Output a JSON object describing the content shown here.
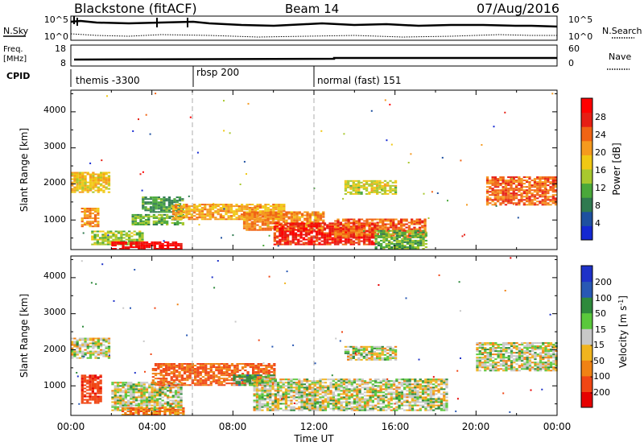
{
  "header": {
    "station": "Blackstone (fitACF)",
    "beam": "Beam 14",
    "date": "07/Aug/2016"
  },
  "noise_panel": {
    "left_label": "N.Sky",
    "right_label": "N.Search",
    "left_ticks": [
      "10^5",
      "10^0"
    ],
    "right_ticks": [
      "10^5",
      "10^0"
    ]
  },
  "freq_panel": {
    "left_label_line1": "Freq.",
    "left_label_line2": "[MHz]",
    "right_label": "Nave",
    "left_ticks": [
      "18",
      "8"
    ],
    "right_ticks": [
      "60",
      "0"
    ]
  },
  "cpid_panel": {
    "label": "CPID",
    "segments": [
      {
        "name": "themis -3300",
        "start_hour": 0,
        "end_hour": 6
      },
      {
        "name": "rbsp 200",
        "start_hour": 6,
        "end_hour": 12
      },
      {
        "name": "normal (fast) 151",
        "start_hour": 12,
        "end_hour": 24
      }
    ]
  },
  "x_axis": {
    "label": "Time UT",
    "ticks": [
      "00:00",
      "04:00",
      "08:00",
      "12:00",
      "16:00",
      "20:00",
      "00:00"
    ]
  },
  "power_panel": {
    "ylabel": "Slant Range [km]",
    "yticks": [
      "4000",
      "3000",
      "2000",
      "1000"
    ],
    "colorbar_label": "Power [dB]",
    "colorbar_ticks": [
      "28",
      "24",
      "20",
      "16",
      "12",
      "8",
      "4"
    ],
    "colors": [
      "#1428d2",
      "#1e50a0",
      "#2f7a50",
      "#4aa83a",
      "#a8c82e",
      "#f0c814",
      "#f59a1e",
      "#f06414",
      "#e61e14",
      "#ff0000"
    ]
  },
  "velocity_panel": {
    "ylabel": "Slant Range [km]",
    "yticks": [
      "4000",
      "3000",
      "2000",
      "1000"
    ],
    "colorbar_label": "Velocity [m s",
    "colorbar_unit_sup": "-1",
    "colorbar_label_end": "]",
    "colorbar_ticks": [
      "200",
      "100",
      "50",
      "15",
      "-15",
      "-50",
      "-100",
      "-200"
    ],
    "colors": [
      "#1e32c8",
      "#2858b4",
      "#2e8a3c",
      "#5ac83c",
      "#c8c8c8",
      "#f0b41e",
      "#f08214",
      "#f04614",
      "#e60000"
    ]
  },
  "chart_data": [
    {
      "type": "heatmap",
      "title": "Power",
      "xlabel": "Time UT",
      "ylabel": "Slant Range [km]",
      "xlim": [
        0,
        24
      ],
      "ylim": [
        180,
        4600
      ],
      "zlabel": "Power [dB]",
      "zlim": [
        0,
        32
      ],
      "grid": false,
      "patches": [
        {
          "t0": 0.0,
          "t1": 1.9,
          "r0": 1750,
          "r1": 2300,
          "value": 18
        },
        {
          "t0": 0.5,
          "t1": 1.4,
          "r0": 800,
          "r1": 1300,
          "value": 22
        },
        {
          "t0": 1.0,
          "t1": 3.5,
          "r0": 300,
          "r1": 700,
          "value": 14
        },
        {
          "t0": 2.0,
          "t1": 5.5,
          "r0": 180,
          "r1": 400,
          "value": 30
        },
        {
          "t0": 3.0,
          "t1": 5.5,
          "r0": 850,
          "r1": 1150,
          "value": 12
        },
        {
          "t0": 3.5,
          "t1": 5.5,
          "r0": 1200,
          "r1": 1650,
          "value": 10
        },
        {
          "t0": 5.0,
          "t1": 10.5,
          "r0": 1000,
          "r1": 1450,
          "value": 20
        },
        {
          "t0": 8.5,
          "t1": 12.5,
          "r0": 700,
          "r1": 1200,
          "value": 22
        },
        {
          "t0": 10.0,
          "t1": 15.0,
          "r0": 300,
          "r1": 900,
          "value": 28
        },
        {
          "t0": 13.0,
          "t1": 17.5,
          "r0": 500,
          "r1": 1000,
          "value": 24
        },
        {
          "t0": 15.0,
          "t1": 17.5,
          "r0": 180,
          "r1": 700,
          "value": 12
        },
        {
          "t0": 13.5,
          "t1": 16.0,
          "r0": 1700,
          "r1": 2100,
          "value": 16
        },
        {
          "t0": 20.5,
          "t1": 24.0,
          "r0": 1400,
          "r1": 2200,
          "value": 24
        }
      ]
    },
    {
      "type": "heatmap",
      "title": "Velocity",
      "xlabel": "Time UT",
      "ylabel": "Slant Range [km]",
      "xlim": [
        0,
        24
      ],
      "ylim": [
        180,
        4600
      ],
      "zlabel": "Velocity [m s-1]",
      "zlim": [
        -200,
        200
      ],
      "grid": false,
      "patches": [
        {
          "t0": 0.0,
          "t1": 1.9,
          "r0": 1750,
          "r1": 2300,
          "value": 0
        },
        {
          "t0": 0.5,
          "t1": 1.5,
          "r0": 500,
          "r1": 1300,
          "value": -120
        },
        {
          "t0": 2.0,
          "t1": 5.5,
          "r0": 300,
          "r1": 1100,
          "value": 0
        },
        {
          "t0": 2.5,
          "t1": 5.5,
          "r0": 180,
          "r1": 400,
          "value": -60
        },
        {
          "t0": 4.0,
          "t1": 10.0,
          "r0": 1000,
          "r1": 1600,
          "value": -80
        },
        {
          "t0": 8.0,
          "t1": 10.0,
          "r0": 1000,
          "r1": 1300,
          "value": 40
        },
        {
          "t0": 9.0,
          "t1": 18.5,
          "r0": 300,
          "r1": 1200,
          "value": 0
        },
        {
          "t0": 13.5,
          "t1": 16.0,
          "r0": 1700,
          "r1": 2100,
          "value": 0
        },
        {
          "t0": 20.0,
          "t1": 24.0,
          "r0": 1400,
          "r1": 2200,
          "value": 0
        }
      ]
    }
  ]
}
